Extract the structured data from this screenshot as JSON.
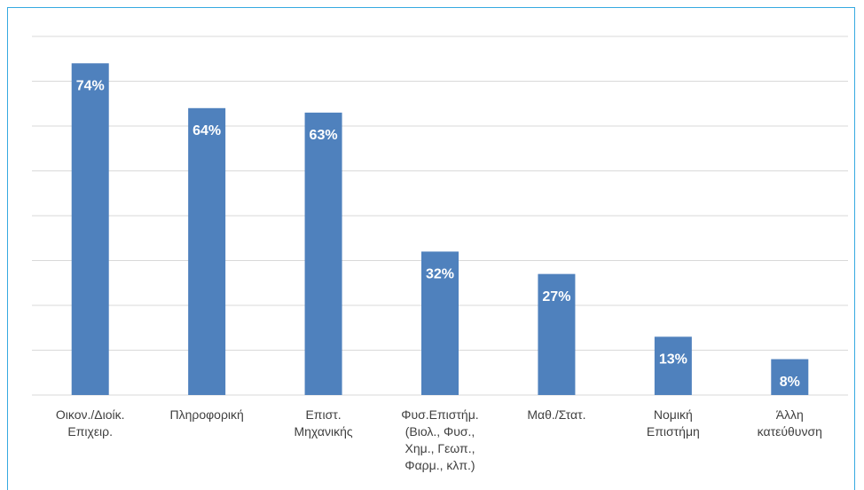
{
  "chart_data": {
    "type": "bar",
    "categories": [
      "Οικον./Διοίκ.\nΕπιχειρ.",
      "Πληροφορική",
      "Επιστ.\nΜηχανικής",
      "Φυσ.Επιστήμ.\n(Βιολ., Φυσ.,\nΧημ., Γεωπ.,\nΦαρμ., κλπ.)",
      "Μαθ./Στατ.",
      "Νομική\nΕπιστήμη",
      "Άλλη\nκατεύθυνση"
    ],
    "values": [
      74,
      64,
      63,
      32,
      27,
      13,
      8
    ],
    "value_labels": [
      "74%",
      "64%",
      "63%",
      "32%",
      "27%",
      "13%",
      "8%"
    ],
    "color": "#4f81bd",
    "ylim": [
      0,
      80
    ],
    "yticks": [
      0,
      10,
      20,
      30,
      40,
      50,
      60,
      70,
      80
    ],
    "grid": true
  }
}
